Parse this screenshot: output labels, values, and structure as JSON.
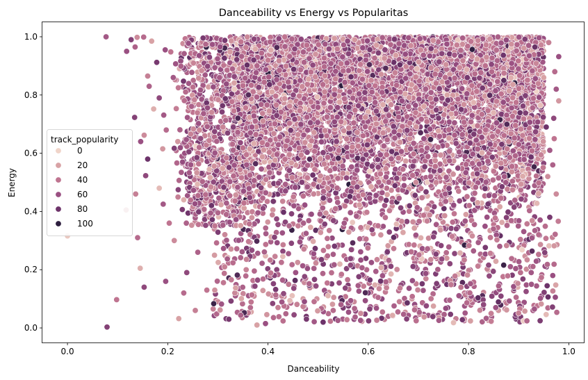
{
  "chart_data": {
    "type": "scatter",
    "title": "Danceability vs Energy vs Popularitas",
    "xlabel": "Danceability",
    "ylabel": "Energy",
    "xlim": [
      -0.05,
      1.03
    ],
    "ylim": [
      -0.05,
      1.05
    ],
    "xticks": [
      0.0,
      0.2,
      0.4,
      0.6,
      0.8,
      1.0
    ],
    "xtick_labels": [
      "0.0",
      "0.2",
      "0.4",
      "0.6",
      "0.8",
      "1.0"
    ],
    "yticks": [
      0.0,
      0.2,
      0.4,
      0.6,
      0.8,
      1.0
    ],
    "ytick_labels": [
      "0.0",
      "0.2",
      "0.4",
      "0.6",
      "0.8",
      "1.0"
    ],
    "grid": false,
    "legend": {
      "title": "track_popularity",
      "placement": "center-left",
      "entries": [
        {
          "label": "0",
          "value": 0,
          "color": "#f0d4c9"
        },
        {
          "label": "20",
          "value": 20,
          "color": "#d8a2a5"
        },
        {
          "label": "40",
          "value": 40,
          "color": "#bf7490"
        },
        {
          "label": "60",
          "value": 60,
          "color": "#9a5082"
        },
        {
          "label": "80",
          "value": 80,
          "color": "#6d336a"
        },
        {
          "label": "100",
          "value": 100,
          "color": "#2d1e3e"
        }
      ]
    },
    "hue": "track_popularity",
    "points": [
      [
        0.077,
        1.0,
        55
      ],
      [
        0.139,
        0.998,
        30
      ],
      [
        0.152,
        0.999,
        45
      ],
      [
        0.127,
        0.99,
        70
      ],
      [
        0.168,
        0.985,
        20
      ],
      [
        0.195,
        0.955,
        60
      ],
      [
        0.206,
        0.948,
        40
      ],
      [
        0.178,
        0.912,
        75
      ],
      [
        0.16,
        0.865,
        35
      ],
      [
        0.163,
        0.83,
        50
      ],
      [
        0.183,
        0.79,
        65
      ],
      [
        0.172,
        0.752,
        15
      ],
      [
        0.192,
        0.731,
        55
      ],
      [
        0.134,
        0.723,
        70
      ],
      [
        0.153,
        0.662,
        30
      ],
      [
        0.197,
        0.68,
        45
      ],
      [
        0.146,
        0.64,
        60
      ],
      [
        0.19,
        0.615,
        25
      ],
      [
        0.16,
        0.58,
        80
      ],
      [
        0.156,
        0.523,
        65
      ],
      [
        0.183,
        0.48,
        10
      ],
      [
        0.136,
        0.46,
        35
      ],
      [
        0.117,
        0.405,
        20
      ],
      [
        0.191,
        0.425,
        55
      ],
      [
        0.14,
        0.31,
        45
      ],
      [
        0.145,
        0.205,
        15
      ],
      [
        0.153,
        0.14,
        65
      ],
      [
        0.098,
        0.097,
        40
      ],
      [
        0.079,
        0.003,
        70
      ],
      [
        0.0,
        0.316,
        5
      ],
      [
        0.135,
        0.965,
        50
      ],
      [
        0.118,
        0.95,
        60
      ],
      [
        0.203,
        0.36,
        40
      ],
      [
        0.222,
        0.032,
        20
      ],
      [
        0.213,
        0.3,
        30
      ],
      [
        0.196,
        0.16,
        60
      ],
      [
        0.232,
        0.12,
        45
      ],
      [
        0.255,
        0.06,
        35
      ],
      [
        0.211,
        0.86,
        55
      ],
      [
        0.22,
        0.64,
        25
      ],
      [
        0.245,
        0.52,
        70
      ],
      [
        0.232,
        0.44,
        15
      ],
      [
        0.26,
        0.26,
        50
      ],
      [
        0.238,
        0.19,
        65
      ],
      [
        0.278,
        0.13,
        40
      ],
      [
        0.3,
        0.09,
        30
      ],
      [
        0.322,
        0.03,
        75
      ],
      [
        0.335,
        0.11,
        55
      ],
      [
        0.365,
        0.07,
        45
      ],
      [
        0.378,
        0.01,
        20
      ],
      [
        0.395,
        0.015,
        60
      ],
      [
        0.42,
        0.07,
        35
      ],
      [
        0.452,
        0.045,
        65
      ],
      [
        0.47,
        0.1,
        25
      ],
      [
        0.51,
        0.02,
        80
      ],
      [
        0.53,
        0.06,
        45
      ],
      [
        0.56,
        0.085,
        55
      ],
      [
        0.585,
        0.05,
        30
      ],
      [
        0.603,
        0.065,
        70
      ],
      [
        0.64,
        0.04,
        50
      ],
      [
        0.662,
        0.09,
        35
      ],
      [
        0.7,
        0.06,
        60
      ],
      [
        0.73,
        0.075,
        20
      ],
      [
        0.77,
        0.018,
        10
      ],
      [
        0.756,
        0.095,
        55
      ],
      [
        0.792,
        0.12,
        40
      ],
      [
        0.83,
        0.08,
        65
      ],
      [
        0.876,
        0.062,
        25
      ],
      [
        0.895,
        0.105,
        45
      ],
      [
        0.898,
        0.14,
        15
      ],
      [
        0.902,
        0.075,
        70
      ],
      [
        0.925,
        0.19,
        55
      ],
      [
        0.953,
        0.25,
        35
      ],
      [
        0.968,
        0.18,
        60
      ],
      [
        0.94,
        0.32,
        45
      ],
      [
        0.962,
        0.38,
        75
      ],
      [
        0.975,
        0.46,
        30
      ],
      [
        0.968,
        0.56,
        50
      ],
      [
        0.971,
        0.65,
        40
      ],
      [
        0.97,
        0.72,
        65
      ],
      [
        0.98,
        0.78,
        25
      ],
      [
        0.975,
        0.82,
        55
      ],
      [
        0.972,
        0.88,
        45
      ],
      [
        0.98,
        0.932,
        60
      ],
      [
        0.96,
        0.98,
        35
      ],
      [
        0.94,
        0.94,
        70
      ],
      [
        0.95,
        0.86,
        20
      ],
      [
        0.955,
        0.69,
        80
      ],
      [
        0.962,
        0.61,
        55
      ],
      [
        0.958,
        0.52,
        30
      ]
    ],
    "background_cloud": {
      "x_range": [
        0.21,
        0.98
      ],
      "y_range": [
        0.02,
        1.0
      ],
      "dense_x_range": [
        0.33,
        0.95
      ],
      "dense_y_range": [
        0.33,
        1.0
      ],
      "count": 9000,
      "popularity_range": [
        0,
        100
      ]
    }
  }
}
